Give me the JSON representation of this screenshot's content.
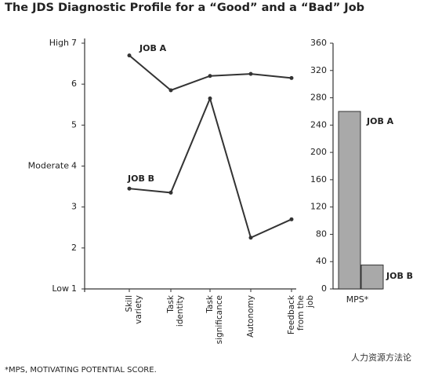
{
  "title": "The JDS Diagnostic Profile for a “Good” and a “Bad” Job",
  "footnote": "*MPS, MOTIVATING POTENTIAL SCORE.",
  "watermark": "人力资源方法论",
  "chart_data": [
    {
      "type": "line",
      "categories": [
        "Skill\nvariety",
        "Task\nidentity",
        "Task\nsignificance",
        "Autonomy",
        "Feedback\nfrom the\njob"
      ],
      "ylim": [
        1,
        7
      ],
      "yticks": [
        1,
        2,
        3,
        4,
        5,
        6,
        7
      ],
      "y_level_labels": [
        {
          "value": 1,
          "label": "Low"
        },
        {
          "value": 4,
          "label": "Moderate"
        },
        {
          "value": 7,
          "label": "High"
        }
      ],
      "series": [
        {
          "name": "JOB A",
          "color": "#333333",
          "values": [
            6.7,
            5.85,
            6.2,
            6.25,
            6.15
          ]
        },
        {
          "name": "JOB B",
          "color": "#333333",
          "values": [
            3.45,
            3.35,
            5.65,
            2.25,
            2.7
          ]
        }
      ]
    },
    {
      "type": "bar",
      "categories": [
        "MPS*"
      ],
      "ylim": [
        0,
        360
      ],
      "yticks": [
        0,
        40,
        80,
        120,
        160,
        200,
        240,
        280,
        320,
        360
      ],
      "series": [
        {
          "name": "JOB A",
          "color": "#a9a9a9",
          "values": [
            260
          ]
        },
        {
          "name": "JOB B",
          "color": "#a9a9a9",
          "values": [
            35
          ]
        }
      ]
    }
  ]
}
